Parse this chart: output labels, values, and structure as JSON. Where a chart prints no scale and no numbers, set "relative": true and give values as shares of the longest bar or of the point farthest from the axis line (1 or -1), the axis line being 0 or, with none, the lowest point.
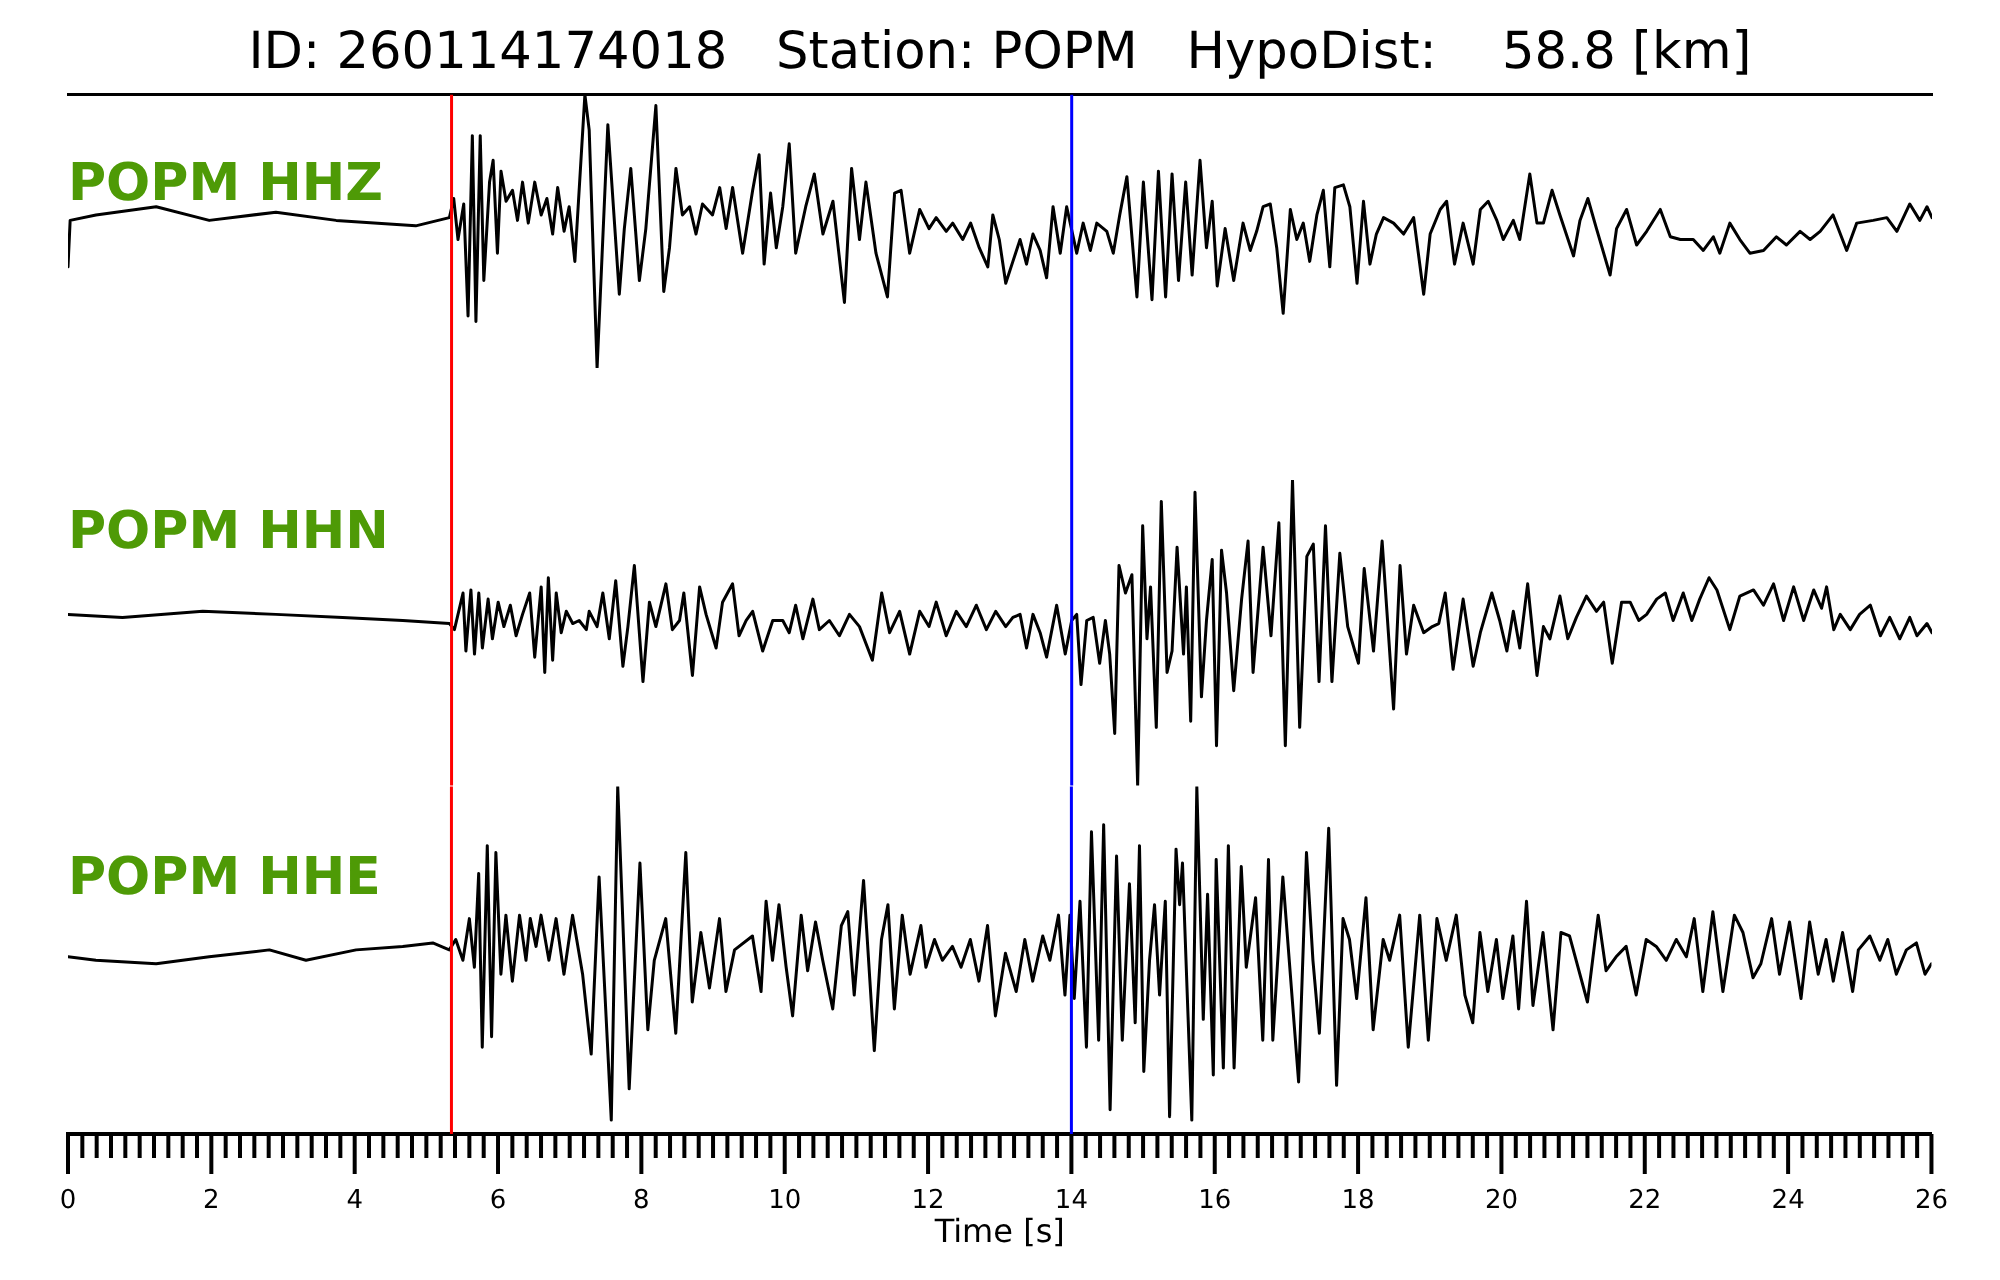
{
  "chart_data": [
    {
      "type": "line",
      "title": "ID: 260114174018   Station: POPM   HypoDist:    58.8 [km]",
      "relative": true,
      "xlim": [
        0,
        26
      ],
      "tick_labels": false,
      "x": [
        0,
        0.03,
        0.39,
        1.23,
        1.97,
        2.9,
        3.74,
        4.85,
        5.32,
        5.38,
        5.44,
        5.52,
        5.58,
        5.64,
        5.69,
        5.75,
        5.8,
        5.88,
        5.93,
        5.99,
        6.04,
        6.11,
        6.2,
        6.27,
        6.34,
        6.42,
        6.51,
        6.6,
        6.68,
        6.76,
        6.83,
        6.92,
        6.99,
        7.07,
        7.21,
        7.27,
        7.38,
        7.53,
        7.69,
        7.76,
        7.85,
        7.97,
        8.06,
        8.2,
        8.31,
        8.39,
        8.48,
        8.57,
        8.67,
        8.76,
        8.85,
        8.99,
        9.09,
        9.18,
        9.27,
        9.41,
        9.55,
        9.64,
        9.71,
        9.8,
        9.88,
        9.97,
        10.06,
        10.15,
        10.29,
        10.41,
        10.53,
        10.67,
        10.83,
        10.93,
        11.04,
        11.13,
        11.27,
        11.43,
        11.53,
        11.62,
        11.74,
        11.88,
        12.01,
        12.11,
        12.25,
        12.34,
        12.48,
        12.59,
        12.71,
        12.83,
        12.9,
        12.99,
        13.08,
        13.18,
        13.28,
        13.37,
        13.46,
        13.56,
        13.65,
        13.74,
        13.84,
        13.93,
        14.07,
        14.16,
        14.26,
        14.35,
        14.49,
        14.58,
        14.67,
        14.77,
        14.91,
        15,
        15.12,
        15.21,
        15.31,
        15.4,
        15.49,
        15.59,
        15.68,
        15.79,
        15.88,
        15.96,
        16.03,
        16.14,
        16.26,
        16.39,
        16.49,
        16.58,
        16.67,
        16.77,
        16.86,
        16.95,
        17.05,
        17.14,
        17.23,
        17.32,
        17.42,
        17.51,
        17.6,
        17.67,
        17.79,
        17.88,
        17.98,
        18.07,
        18.16,
        18.25,
        18.35,
        18.49,
        18.63,
        18.77,
        18.91,
        19,
        19.14,
        19.23,
        19.34,
        19.46,
        19.6,
        19.7,
        19.81,
        19.93,
        20.02,
        20.16,
        20.25,
        20.39,
        20.49,
        20.58,
        20.7,
        20.81,
        21,
        21.09,
        21.2,
        21.32,
        21.51,
        21.6,
        21.74,
        21.88,
        22.02,
        22.21,
        22.35,
        22.49,
        22.67,
        22.81,
        22.95,
        23.04,
        23.18,
        23.32,
        23.46,
        23.65,
        23.83,
        23.97,
        24.16,
        24.3,
        24.44,
        24.62,
        24.81,
        24.95,
        25.18,
        25.37,
        25.51,
        25.69,
        25.83,
        25.93,
        26
      ],
      "series": [
        {
          "name": "POPM HHZ",
          "color": "#000000",
          "values": [
            0.37,
            0.54,
            0.56,
            0.59,
            0.54,
            0.57,
            0.54,
            0.52,
            0.55,
            0.62,
            0.47,
            0.6,
            0.19,
            0.85,
            0.17,
            0.85,
            0.32,
            0.68,
            0.76,
            0.42,
            0.72,
            0.61,
            0.65,
            0.54,
            0.68,
            0.53,
            0.68,
            0.56,
            0.62,
            0.49,
            0.66,
            0.5,
            0.59,
            0.39,
            1,
            0.87,
            0,
            0.89,
            0.27,
            0.51,
            0.73,
            0.32,
            0.51,
            0.96,
            0.28,
            0.44,
            0.73,
            0.56,
            0.59,
            0.49,
            0.6,
            0.56,
            0.66,
            0.51,
            0.66,
            0.42,
            0.65,
            0.78,
            0.38,
            0.64,
            0.44,
            0.59,
            0.82,
            0.42,
            0.59,
            0.71,
            0.49,
            0.61,
            0.24,
            0.73,
            0.47,
            0.68,
            0.42,
            0.26,
            0.64,
            0.65,
            0.42,
            0.58,
            0.51,
            0.55,
            0.5,
            0.53,
            0.47,
            0.53,
            0.44,
            0.37,
            0.56,
            0.47,
            0.31,
            0.39,
            0.47,
            0.38,
            0.49,
            0.43,
            0.33,
            0.59,
            0.42,
            0.59,
            0.42,
            0.53,
            0.43,
            0.53,
            0.5,
            0.42,
            0.56,
            0.7,
            0.26,
            0.68,
            0.25,
            0.72,
            0.26,
            0.71,
            0.32,
            0.68,
            0.34,
            0.76,
            0.44,
            0.61,
            0.3,
            0.51,
            0.32,
            0.53,
            0.43,
            0.5,
            0.59,
            0.6,
            0.44,
            0.2,
            0.58,
            0.47,
            0.53,
            0.39,
            0.56,
            0.65,
            0.37,
            0.66,
            0.67,
            0.59,
            0.31,
            0.61,
            0.38,
            0.49,
            0.55,
            0.53,
            0.49,
            0.55,
            0.27,
            0.49,
            0.58,
            0.61,
            0.38,
            0.53,
            0.38,
            0.58,
            0.61,
            0.54,
            0.47,
            0.54,
            0.47,
            0.71,
            0.53,
            0.53,
            0.65,
            0.56,
            0.41,
            0.54,
            0.62,
            0.51,
            0.34,
            0.51,
            0.58,
            0.45,
            0.5,
            0.58,
            0.48,
            0.47,
            0.47,
            0.43,
            0.48,
            0.42,
            0.53,
            0.47,
            0.42,
            0.43,
            0.48,
            0.45,
            0.5,
            0.47,
            0.5,
            0.56,
            0.43,
            0.53,
            0.54,
            0.55,
            0.5,
            0.6,
            0.54,
            0.59,
            0.55
          ]
        }
      ],
      "ref_lines": [
        {
          "axis": "x",
          "value": 5.35,
          "color": "#ff0000"
        },
        {
          "axis": "x",
          "value": 14,
          "color": "#0000ff"
        }
      ]
    },
    {
      "type": "line",
      "relative": true,
      "xlim": [
        0,
        26
      ],
      "tick_labels": false,
      "x": [
        0,
        0.76,
        1.88,
        2.9,
        3.83,
        4.67,
        5.32,
        5.39,
        5.51,
        5.55,
        5.62,
        5.67,
        5.73,
        5.78,
        5.86,
        5.92,
        6,
        6.08,
        6.17,
        6.25,
        6.34,
        6.44,
        6.51,
        6.6,
        6.65,
        6.7,
        6.76,
        6.81,
        6.88,
        6.95,
        7.04,
        7.13,
        7.23,
        7.27,
        7.38,
        7.46,
        7.55,
        7.64,
        7.74,
        7.81,
        7.9,
        8.02,
        8.11,
        8.2,
        8.34,
        8.43,
        8.53,
        8.59,
        8.71,
        8.81,
        8.9,
        9.04,
        9.13,
        9.27,
        9.36,
        9.46,
        9.55,
        9.69,
        9.83,
        9.97,
        10.06,
        10.15,
        10.25,
        10.39,
        10.48,
        10.62,
        10.76,
        10.9,
        11.04,
        11.22,
        11.35,
        11.46,
        11.6,
        11.74,
        11.88,
        12.01,
        12.11,
        12.25,
        12.39,
        12.53,
        12.67,
        12.81,
        12.94,
        13.08,
        13.18,
        13.28,
        13.37,
        13.46,
        13.56,
        13.65,
        13.79,
        13.91,
        14,
        14.07,
        14.13,
        14.21,
        14.3,
        14.39,
        14.47,
        14.53,
        14.6,
        14.66,
        14.75,
        14.84,
        14.92,
        14.99,
        15.05,
        15.1,
        15.18,
        15.25,
        15.33,
        15.4,
        15.47,
        15.56,
        15.6,
        15.66,
        15.72,
        15.81,
        15.88,
        15.96,
        16.02,
        16.09,
        16.16,
        16.26,
        16.37,
        16.46,
        16.53,
        16.67,
        16.78,
        16.89,
        16.98,
        17.08,
        17.18,
        17.28,
        17.37,
        17.45,
        17.54,
        17.63,
        17.74,
        17.85,
        18,
        18.08,
        18.21,
        18.33,
        18.49,
        18.58,
        18.67,
        18.77,
        18.91,
        19.03,
        19.12,
        19.21,
        19.32,
        19.46,
        19.6,
        19.7,
        19.86,
        19.97,
        20.07,
        20.16,
        20.25,
        20.36,
        20.49,
        20.58,
        20.67,
        20.81,
        20.92,
        21.04,
        21.18,
        21.32,
        21.42,
        21.54,
        21.67,
        21.79,
        21.91,
        22.02,
        22.16,
        22.28,
        22.39,
        22.53,
        22.65,
        22.76,
        22.89,
        23,
        23.18,
        23.32,
        23.51,
        23.65,
        23.79,
        23.93,
        24.07,
        24.21,
        24.35,
        24.46,
        24.53,
        24.63,
        24.72,
        24.86,
        24.99,
        25.14,
        25.28,
        25.41,
        25.55,
        25.69,
        25.79,
        25.93,
        26
      ],
      "series": [
        {
          "name": "POPM HHN",
          "color": "#000000",
          "values": [
            0.56,
            0.55,
            0.57,
            0.56,
            0.55,
            0.54,
            0.53,
            0.51,
            0.63,
            0.44,
            0.64,
            0.43,
            0.63,
            0.45,
            0.61,
            0.48,
            0.6,
            0.52,
            0.59,
            0.49,
            0.56,
            0.63,
            0.42,
            0.65,
            0.37,
            0.68,
            0.41,
            0.63,
            0.5,
            0.57,
            0.53,
            0.54,
            0.51,
            0.57,
            0.52,
            0.63,
            0.48,
            0.67,
            0.39,
            0.52,
            0.72,
            0.34,
            0.6,
            0.52,
            0.66,
            0.51,
            0.54,
            0.63,
            0.36,
            0.65,
            0.56,
            0.45,
            0.6,
            0.66,
            0.49,
            0.54,
            0.57,
            0.44,
            0.54,
            0.54,
            0.5,
            0.59,
            0.48,
            0.61,
            0.51,
            0.54,
            0.49,
            0.56,
            0.52,
            0.41,
            0.63,
            0.5,
            0.57,
            0.43,
            0.57,
            0.52,
            0.6,
            0.49,
            0.57,
            0.52,
            0.59,
            0.51,
            0.57,
            0.52,
            0.55,
            0.56,
            0.45,
            0.56,
            0.5,
            0.42,
            0.59,
            0.43,
            0.54,
            0.56,
            0.33,
            0.54,
            0.55,
            0.4,
            0.54,
            0.43,
            0.17,
            0.72,
            0.63,
            0.69,
            0,
            0.85,
            0.48,
            0.65,
            0.19,
            0.93,
            0.37,
            0.44,
            0.78,
            0.43,
            0.65,
            0.21,
            0.96,
            0.29,
            0.54,
            0.74,
            0.13,
            0.77,
            0.63,
            0.31,
            0.61,
            0.8,
            0.37,
            0.78,
            0.49,
            0.86,
            0.13,
            1,
            0.19,
            0.75,
            0.79,
            0.34,
            0.85,
            0.34,
            0.76,
            0.52,
            0.4,
            0.71,
            0.44,
            0.8,
            0.25,
            0.72,
            0.43,
            0.59,
            0.5,
            0.52,
            0.53,
            0.63,
            0.38,
            0.61,
            0.39,
            0.5,
            0.63,
            0.54,
            0.44,
            0.57,
            0.45,
            0.66,
            0.36,
            0.52,
            0.48,
            0.62,
            0.48,
            0.55,
            0.62,
            0.57,
            0.6,
            0.4,
            0.6,
            0.6,
            0.54,
            0.56,
            0.61,
            0.63,
            0.54,
            0.63,
            0.54,
            0.61,
            0.68,
            0.64,
            0.51,
            0.62,
            0.64,
            0.59,
            0.66,
            0.54,
            0.65,
            0.54,
            0.64,
            0.58,
            0.65,
            0.51,
            0.56,
            0.51,
            0.56,
            0.59,
            0.49,
            0.55,
            0.48,
            0.55,
            0.49,
            0.53,
            0.5
          ]
        }
      ],
      "ref_lines": [
        {
          "axis": "x",
          "value": 5.35,
          "color": "#ff0000"
        },
        {
          "axis": "x",
          "value": 14,
          "color": "#0000ff"
        }
      ]
    },
    {
      "type": "line",
      "relative": true,
      "xlabel": "Time [s]",
      "xlim": [
        0,
        26
      ],
      "tick_labels": "x",
      "xticks": [
        0,
        {
          "value": 0.2,
          "label": null
        },
        {
          "value": 0.4,
          "label": null
        },
        {
          "value": 0.6,
          "label": null
        },
        {
          "value": 0.8,
          "label": null
        },
        {
          "value": 1,
          "label": null
        },
        {
          "value": 1.2,
          "label": null
        },
        {
          "value": 1.4,
          "label": null
        },
        {
          "value": 1.6,
          "label": null
        },
        {
          "value": 1.8,
          "label": null
        },
        2,
        {
          "value": 2.2,
          "label": null
        },
        {
          "value": 2.4,
          "label": null
        },
        {
          "value": 2.6,
          "label": null
        },
        {
          "value": 2.8,
          "label": null
        },
        {
          "value": 3,
          "label": null
        },
        {
          "value": 3.2,
          "label": null
        },
        {
          "value": 3.4,
          "label": null
        },
        {
          "value": 3.6,
          "label": null
        },
        {
          "value": 3.8,
          "label": null
        },
        4,
        {
          "value": 4.2,
          "label": null
        },
        {
          "value": 4.4,
          "label": null
        },
        {
          "value": 4.6,
          "label": null
        },
        {
          "value": 4.8,
          "label": null
        },
        {
          "value": 5,
          "label": null
        },
        {
          "value": 5.2,
          "label": null
        },
        {
          "value": 5.4,
          "label": null
        },
        {
          "value": 5.6,
          "label": null
        },
        {
          "value": 5.8,
          "label": null
        },
        6,
        {
          "value": 6.2,
          "label": null
        },
        {
          "value": 6.4,
          "label": null
        },
        {
          "value": 6.6,
          "label": null
        },
        {
          "value": 6.8,
          "label": null
        },
        {
          "value": 7,
          "label": null
        },
        {
          "value": 7.2,
          "label": null
        },
        {
          "value": 7.4,
          "label": null
        },
        {
          "value": 7.6,
          "label": null
        },
        {
          "value": 7.8,
          "label": null
        },
        8,
        {
          "value": 8.2,
          "label": null
        },
        {
          "value": 8.4,
          "label": null
        },
        {
          "value": 8.6,
          "label": null
        },
        {
          "value": 8.8,
          "label": null
        },
        {
          "value": 9,
          "label": null
        },
        {
          "value": 9.2,
          "label": null
        },
        {
          "value": 9.4,
          "label": null
        },
        {
          "value": 9.6,
          "label": null
        },
        {
          "value": 9.8,
          "label": null
        },
        10,
        {
          "value": 10.2,
          "label": null
        },
        {
          "value": 10.4,
          "label": null
        },
        {
          "value": 10.6,
          "label": null
        },
        {
          "value": 10.8,
          "label": null
        },
        {
          "value": 11,
          "label": null
        },
        {
          "value": 11.2,
          "label": null
        },
        {
          "value": 11.4,
          "label": null
        },
        {
          "value": 11.6,
          "label": null
        },
        {
          "value": 11.8,
          "label": null
        },
        12,
        {
          "value": 12.2,
          "label": null
        },
        {
          "value": 12.4,
          "label": null
        },
        {
          "value": 12.6,
          "label": null
        },
        {
          "value": 12.8,
          "label": null
        },
        {
          "value": 13,
          "label": null
        },
        {
          "value": 13.2,
          "label": null
        },
        {
          "value": 13.4,
          "label": null
        },
        {
          "value": 13.6,
          "label": null
        },
        {
          "value": 13.8,
          "label": null
        },
        14,
        {
          "value": 14.2,
          "label": null
        },
        {
          "value": 14.4,
          "label": null
        },
        {
          "value": 14.6,
          "label": null
        },
        {
          "value": 14.8,
          "label": null
        },
        {
          "value": 15,
          "label": null
        },
        {
          "value": 15.2,
          "label": null
        },
        {
          "value": 15.4,
          "label": null
        },
        {
          "value": 15.6,
          "label": null
        },
        {
          "value": 15.8,
          "label": null
        },
        16,
        {
          "value": 16.2,
          "label": null
        },
        {
          "value": 16.4,
          "label": null
        },
        {
          "value": 16.6,
          "label": null
        },
        {
          "value": 16.8,
          "label": null
        },
        {
          "value": 17,
          "label": null
        },
        {
          "value": 17.2,
          "label": null
        },
        {
          "value": 17.4,
          "label": null
        },
        {
          "value": 17.6,
          "label": null
        },
        {
          "value": 17.8,
          "label": null
        },
        18,
        {
          "value": 18.2,
          "label": null
        },
        {
          "value": 18.4,
          "label": null
        },
        {
          "value": 18.6,
          "label": null
        },
        {
          "value": 18.8,
          "label": null
        },
        {
          "value": 19,
          "label": null
        },
        {
          "value": 19.2,
          "label": null
        },
        {
          "value": 19.4,
          "label": null
        },
        {
          "value": 19.6,
          "label": null
        },
        {
          "value": 19.8,
          "label": null
        },
        20,
        {
          "value": 20.2,
          "label": null
        },
        {
          "value": 20.4,
          "label": null
        },
        {
          "value": 20.6,
          "label": null
        },
        {
          "value": 20.8,
          "label": null
        },
        {
          "value": 21,
          "label": null
        },
        {
          "value": 21.2,
          "label": null
        },
        {
          "value": 21.4,
          "label": null
        },
        {
          "value": 21.6,
          "label": null
        },
        {
          "value": 21.8,
          "label": null
        },
        22,
        {
          "value": 22.2,
          "label": null
        },
        {
          "value": 22.4,
          "label": null
        },
        {
          "value": 22.6,
          "label": null
        },
        {
          "value": 22.8,
          "label": null
        },
        {
          "value": 23,
          "label": null
        },
        {
          "value": 23.2,
          "label": null
        },
        {
          "value": 23.4,
          "label": null
        },
        {
          "value": 23.6,
          "label": null
        },
        {
          "value": 23.8,
          "label": null
        },
        24,
        {
          "value": 24.2,
          "label": null
        },
        {
          "value": 24.4,
          "label": null
        },
        {
          "value": 24.6,
          "label": null
        },
        {
          "value": 24.8,
          "label": null
        },
        {
          "value": 25,
          "label": null
        },
        {
          "value": 25.2,
          "label": null
        },
        {
          "value": 25.4,
          "label": null
        },
        {
          "value": 25.6,
          "label": null
        },
        {
          "value": 25.8,
          "label": null
        },
        26
      ],
      "x": [
        0,
        0.39,
        1.23,
        1.97,
        2.81,
        3.32,
        4.02,
        4.67,
        5.09,
        5.32,
        5.41,
        5.51,
        5.6,
        5.67,
        5.73,
        5.78,
        5.85,
        5.91,
        5.97,
        6.04,
        6.11,
        6.2,
        6.3,
        6.39,
        6.45,
        6.53,
        6.6,
        6.71,
        6.81,
        6.92,
        7.04,
        7.18,
        7.3,
        7.41,
        7.58,
        7.67,
        7.83,
        7.98,
        8.09,
        8.18,
        8.34,
        8.48,
        8.62,
        8.71,
        8.83,
        8.95,
        9.09,
        9.18,
        9.3,
        9.55,
        9.67,
        9.74,
        9.83,
        9.92,
        10.02,
        10.11,
        10.23,
        10.32,
        10.43,
        10.53,
        10.67,
        10.79,
        10.88,
        10.97,
        11.1,
        11.25,
        11.35,
        11.44,
        11.53,
        11.64,
        11.75,
        11.9,
        11.97,
        12.09,
        12.2,
        12.34,
        12.46,
        12.59,
        12.71,
        12.83,
        12.94,
        13.08,
        13.23,
        13.35,
        13.46,
        13.6,
        13.7,
        13.82,
        13.91,
        13.98,
        14.04,
        14.12,
        14.21,
        14.28,
        14.38,
        14.45,
        14.54,
        14.63,
        14.71,
        14.81,
        14.89,
        14.95,
        15.01,
        15.09,
        15.16,
        15.23,
        15.31,
        15.37,
        15.46,
        15.51,
        15.55,
        15.68,
        15.75,
        15.84,
        15.9,
        15.98,
        16.02,
        16.12,
        16.19,
        16.27,
        16.37,
        16.44,
        16.57,
        16.67,
        16.75,
        16.81,
        16.95,
        17.17,
        17.28,
        17.37,
        17.46,
        17.59,
        17.7,
        17.79,
        17.88,
        17.98,
        18.11,
        18.21,
        18.35,
        18.44,
        18.58,
        18.7,
        18.86,
        18.98,
        19.1,
        19.23,
        19.37,
        19.49,
        19.6,
        19.7,
        19.81,
        19.93,
        20.02,
        20.16,
        20.24,
        20.35,
        20.44,
        20.58,
        20.72,
        20.83,
        20.95,
        21.2,
        21.35,
        21.46,
        21.6,
        21.74,
        21.88,
        22.02,
        22.16,
        22.3,
        22.44,
        22.58,
        22.69,
        22.81,
        22.95,
        23.09,
        23.25,
        23.37,
        23.51,
        23.62,
        23.77,
        23.88,
        24.02,
        24.18,
        24.3,
        24.42,
        24.53,
        24.63,
        24.76,
        24.9,
        24.98,
        25.14,
        25.28,
        25.39,
        25.51,
        25.65,
        25.79,
        25.91,
        26
      ],
      "series": [
        {
          "name": "POPM HHE",
          "color": "#000000",
          "values": [
            0.51,
            0.5,
            0.49,
            0.51,
            0.53,
            0.5,
            0.53,
            0.54,
            0.55,
            0.53,
            0.56,
            0.5,
            0.62,
            0.48,
            0.75,
            0.25,
            0.83,
            0.28,
            0.81,
            0.46,
            0.63,
            0.44,
            0.63,
            0.5,
            0.62,
            0.54,
            0.63,
            0.5,
            0.62,
            0.46,
            0.63,
            0.46,
            0.23,
            0.74,
            0.04,
            1,
            0.13,
            0.78,
            0.3,
            0.5,
            0.62,
            0.29,
            0.81,
            0.38,
            0.58,
            0.42,
            0.62,
            0.41,
            0.53,
            0.57,
            0.41,
            0.67,
            0.5,
            0.66,
            0.48,
            0.34,
            0.63,
            0.47,
            0.61,
            0.5,
            0.36,
            0.6,
            0.64,
            0.4,
            0.73,
            0.24,
            0.56,
            0.66,
            0.36,
            0.63,
            0.46,
            0.6,
            0.48,
            0.56,
            0.5,
            0.54,
            0.48,
            0.56,
            0.44,
            0.6,
            0.34,
            0.52,
            0.41,
            0.56,
            0.44,
            0.57,
            0.5,
            0.63,
            0.4,
            0.63,
            0.39,
            0.67,
            0.25,
            0.87,
            0.27,
            0.89,
            0.07,
            0.8,
            0.27,
            0.72,
            0.32,
            0.83,
            0.18,
            0.5,
            0.66,
            0.4,
            0.67,
            0.05,
            0.82,
            0.66,
            0.78,
            0.04,
            1,
            0.33,
            0.69,
            0.17,
            0.79,
            0.19,
            0.83,
            0.19,
            0.77,
            0.48,
            0.68,
            0.27,
            0.79,
            0.27,
            0.74,
            0.15,
            0.81,
            0.5,
            0.29,
            0.88,
            0.14,
            0.62,
            0.56,
            0.39,
            0.68,
            0.3,
            0.56,
            0.5,
            0.63,
            0.25,
            0.63,
            0.27,
            0.62,
            0.5,
            0.63,
            0.4,
            0.32,
            0.58,
            0.41,
            0.56,
            0.39,
            0.57,
            0.36,
            0.67,
            0.37,
            0.58,
            0.3,
            0.58,
            0.57,
            0.38,
            0.63,
            0.47,
            0.51,
            0.54,
            0.4,
            0.56,
            0.54,
            0.5,
            0.56,
            0.51,
            0.62,
            0.41,
            0.64,
            0.41,
            0.63,
            0.58,
            0.45,
            0.49,
            0.62,
            0.46,
            0.61,
            0.39,
            0.61,
            0.46,
            0.56,
            0.44,
            0.58,
            0.41,
            0.53,
            0.57,
            0.5,
            0.56,
            0.46,
            0.53,
            0.55,
            0.46,
            0.49
          ]
        }
      ],
      "ref_lines": [
        {
          "axis": "x",
          "value": 5.35,
          "color": "#ff0000"
        },
        {
          "axis": "x",
          "value": 14,
          "color": "#0000ff"
        }
      ]
    }
  ]
}
